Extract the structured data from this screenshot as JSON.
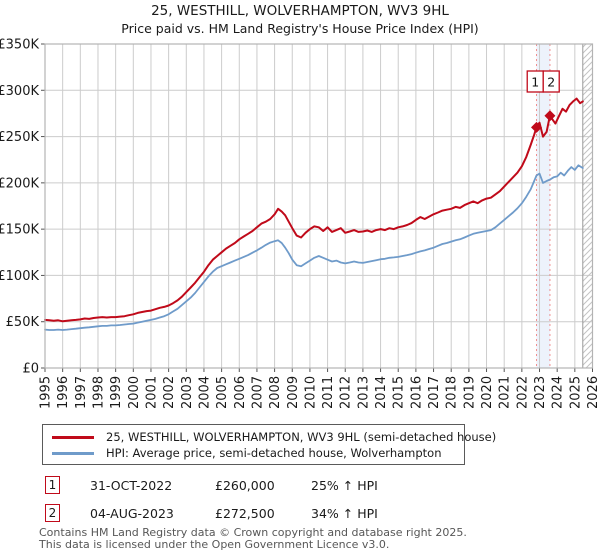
{
  "chart_data": {
    "type": "line",
    "title": "25, WESTHILL, WOLVERHAMPTON, WV3 9HL",
    "subtitle": "Price paid vs. HM Land Registry's House Price Index (HPI)",
    "x_range": [
      1995,
      2026
    ],
    "y_max": 350000,
    "grid": true,
    "legend_position": "bottom",
    "future_hatch_from": 2025.45,
    "x_tick_labels": [
      "1995",
      "1996",
      "1997",
      "1998",
      "1999",
      "2000",
      "2001",
      "2002",
      "2003",
      "2004",
      "2005",
      "2006",
      "2007",
      "2008",
      "2009",
      "2010",
      "2011",
      "2012",
      "2013",
      "2014",
      "2015",
      "2016",
      "2017",
      "2018",
      "2019",
      "2020",
      "2021",
      "2022",
      "2023",
      "2024",
      "2025",
      "2026"
    ],
    "y_ticks": [
      {
        "label": "£0",
        "value": 0
      },
      {
        "label": "£50K",
        "value": 50000
      },
      {
        "label": "£100K",
        "value": 100000
      },
      {
        "label": "£150K",
        "value": 150000
      },
      {
        "label": "£200K",
        "value": 200000
      },
      {
        "label": "£250K",
        "value": 250000
      },
      {
        "label": "£300K",
        "value": 300000
      },
      {
        "label": "£350K",
        "value": 350000
      }
    ],
    "colors": {
      "red": "#c00a1a",
      "blue": "#6f9bca",
      "sale_dash": "#ef8f8f",
      "band": "#edf2fb",
      "grid": "#cccccc",
      "border": "#b3b3b3",
      "hatch": "#c3c3c3",
      "hatch_edge": "#9a9a9a",
      "tick": "#555555",
      "label": "#1a1a1a"
    },
    "series": [
      {
        "name": "25, WESTHILL, WOLVERHAMPTON, WV3 9HL (semi-detached house)",
        "color": "#c00a1a",
        "width": 2,
        "points": [
          [
            1995.0,
            52000
          ],
          [
            1995.25,
            51500
          ],
          [
            1995.5,
            51000
          ],
          [
            1995.75,
            51500
          ],
          [
            1996.0,
            50500
          ],
          [
            1996.25,
            51000
          ],
          [
            1996.5,
            51500
          ],
          [
            1996.75,
            52000
          ],
          [
            1997.0,
            52500
          ],
          [
            1997.25,
            53500
          ],
          [
            1997.5,
            53000
          ],
          [
            1997.75,
            54000
          ],
          [
            1998.0,
            54500
          ],
          [
            1998.25,
            55000
          ],
          [
            1998.5,
            54500
          ],
          [
            1998.75,
            55000
          ],
          [
            1999.0,
            55000
          ],
          [
            1999.25,
            55500
          ],
          [
            1999.5,
            56000
          ],
          [
            1999.75,
            57000
          ],
          [
            2000.0,
            58000
          ],
          [
            2000.25,
            59500
          ],
          [
            2000.5,
            60500
          ],
          [
            2000.75,
            61500
          ],
          [
            2001.0,
            62000
          ],
          [
            2001.25,
            63500
          ],
          [
            2001.5,
            65000
          ],
          [
            2001.75,
            66000
          ],
          [
            2002.0,
            67500
          ],
          [
            2002.25,
            70000
          ],
          [
            2002.5,
            73000
          ],
          [
            2002.75,
            77000
          ],
          [
            2003.0,
            82000
          ],
          [
            2003.25,
            87000
          ],
          [
            2003.5,
            92000
          ],
          [
            2003.75,
            98000
          ],
          [
            2004.0,
            104000
          ],
          [
            2004.25,
            111000
          ],
          [
            2004.5,
            117000
          ],
          [
            2004.75,
            121000
          ],
          [
            2005.0,
            125000
          ],
          [
            2005.25,
            129000
          ],
          [
            2005.5,
            132000
          ],
          [
            2005.75,
            135000
          ],
          [
            2006.0,
            139000
          ],
          [
            2006.25,
            142000
          ],
          [
            2006.5,
            145000
          ],
          [
            2006.75,
            148000
          ],
          [
            2007.0,
            152000
          ],
          [
            2007.25,
            156000
          ],
          [
            2007.5,
            158000
          ],
          [
            2007.75,
            161000
          ],
          [
            2008.0,
            166000
          ],
          [
            2008.2,
            172000
          ],
          [
            2008.4,
            169000
          ],
          [
            2008.6,
            165000
          ],
          [
            2008.8,
            158000
          ],
          [
            2009.0,
            151000
          ],
          [
            2009.25,
            143000
          ],
          [
            2009.5,
            141000
          ],
          [
            2009.75,
            146000
          ],
          [
            2010.0,
            150000
          ],
          [
            2010.25,
            153000
          ],
          [
            2010.5,
            152000
          ],
          [
            2010.75,
            148000
          ],
          [
            2011.0,
            152000
          ],
          [
            2011.25,
            147000
          ],
          [
            2011.5,
            149000
          ],
          [
            2011.75,
            151000
          ],
          [
            2012.0,
            146000
          ],
          [
            2012.25,
            147500
          ],
          [
            2012.5,
            149000
          ],
          [
            2012.75,
            147000
          ],
          [
            2013.0,
            147500
          ],
          [
            2013.25,
            148500
          ],
          [
            2013.5,
            147000
          ],
          [
            2013.75,
            149000
          ],
          [
            2014.0,
            150000
          ],
          [
            2014.25,
            149000
          ],
          [
            2014.5,
            151000
          ],
          [
            2014.75,
            150000
          ],
          [
            2015.0,
            152000
          ],
          [
            2015.25,
            153000
          ],
          [
            2015.5,
            154500
          ],
          [
            2015.75,
            156500
          ],
          [
            2016.0,
            160000
          ],
          [
            2016.25,
            163000
          ],
          [
            2016.5,
            161000
          ],
          [
            2016.75,
            163500
          ],
          [
            2017.0,
            166000
          ],
          [
            2017.25,
            168000
          ],
          [
            2017.5,
            170000
          ],
          [
            2017.75,
            171000
          ],
          [
            2018.0,
            172000
          ],
          [
            2018.25,
            174000
          ],
          [
            2018.5,
            173000
          ],
          [
            2018.75,
            176000
          ],
          [
            2019.0,
            178000
          ],
          [
            2019.25,
            180000
          ],
          [
            2019.5,
            178000
          ],
          [
            2019.75,
            181000
          ],
          [
            2020.0,
            183000
          ],
          [
            2020.25,
            184000
          ],
          [
            2020.5,
            187500
          ],
          [
            2020.75,
            191000
          ],
          [
            2021.0,
            196000
          ],
          [
            2021.25,
            201000
          ],
          [
            2021.5,
            206000
          ],
          [
            2021.75,
            211000
          ],
          [
            2022.0,
            218000
          ],
          [
            2022.25,
            228000
          ],
          [
            2022.5,
            241000
          ],
          [
            2022.7,
            252000
          ],
          [
            2022.83,
            260000
          ],
          [
            2023.0,
            265000
          ],
          [
            2023.2,
            250000
          ],
          [
            2023.4,
            255000
          ],
          [
            2023.59,
            272500
          ],
          [
            2023.75,
            268000
          ],
          [
            2023.9,
            264000
          ],
          [
            2024.1,
            272000
          ],
          [
            2024.3,
            280000
          ],
          [
            2024.5,
            277000
          ],
          [
            2024.7,
            284000
          ],
          [
            2024.9,
            288000
          ],
          [
            2025.1,
            291000
          ],
          [
            2025.3,
            286000
          ],
          [
            2025.45,
            288000
          ]
        ]
      },
      {
        "name": "HPI: Average price, semi-detached house, Wolverhampton",
        "color": "#6f9bca",
        "width": 1.8,
        "points": [
          [
            1995.0,
            41500
          ],
          [
            1995.25,
            41000
          ],
          [
            1995.5,
            41000
          ],
          [
            1995.75,
            41500
          ],
          [
            1996.0,
            41000
          ],
          [
            1996.25,
            41500
          ],
          [
            1996.5,
            42000
          ],
          [
            1996.75,
            42500
          ],
          [
            1997.0,
            43000
          ],
          [
            1997.25,
            43500
          ],
          [
            1997.5,
            44000
          ],
          [
            1997.75,
            44500
          ],
          [
            1998.0,
            45000
          ],
          [
            1998.25,
            45500
          ],
          [
            1998.5,
            45500
          ],
          [
            1998.75,
            46000
          ],
          [
            1999.0,
            46000
          ],
          [
            1999.25,
            46500
          ],
          [
            1999.5,
            47000
          ],
          [
            1999.75,
            47500
          ],
          [
            2000.0,
            48000
          ],
          [
            2000.25,
            49000
          ],
          [
            2000.5,
            50000
          ],
          [
            2000.75,
            51000
          ],
          [
            2001.0,
            52000
          ],
          [
            2001.25,
            53000
          ],
          [
            2001.5,
            54500
          ],
          [
            2001.75,
            56000
          ],
          [
            2002.0,
            58000
          ],
          [
            2002.25,
            61000
          ],
          [
            2002.5,
            64000
          ],
          [
            2002.75,
            68000
          ],
          [
            2003.0,
            72000
          ],
          [
            2003.25,
            76000
          ],
          [
            2003.5,
            81000
          ],
          [
            2003.75,
            87000
          ],
          [
            2004.0,
            93000
          ],
          [
            2004.25,
            99000
          ],
          [
            2004.5,
            104000
          ],
          [
            2004.75,
            108000
          ],
          [
            2005.0,
            110000
          ],
          [
            2005.25,
            112000
          ],
          [
            2005.5,
            114000
          ],
          [
            2005.75,
            116000
          ],
          [
            2006.0,
            118000
          ],
          [
            2006.25,
            120000
          ],
          [
            2006.5,
            122000
          ],
          [
            2006.75,
            124500
          ],
          [
            2007.0,
            127000
          ],
          [
            2007.25,
            130000
          ],
          [
            2007.5,
            133000
          ],
          [
            2007.75,
            135500
          ],
          [
            2008.0,
            137000
          ],
          [
            2008.2,
            138000
          ],
          [
            2008.4,
            135000
          ],
          [
            2008.6,
            130000
          ],
          [
            2008.8,
            124000
          ],
          [
            2009.0,
            117000
          ],
          [
            2009.25,
            111000
          ],
          [
            2009.5,
            110000
          ],
          [
            2009.75,
            113000
          ],
          [
            2010.0,
            116000
          ],
          [
            2010.25,
            119000
          ],
          [
            2010.5,
            121000
          ],
          [
            2010.75,
            119000
          ],
          [
            2011.0,
            117000
          ],
          [
            2011.25,
            115000
          ],
          [
            2011.5,
            116000
          ],
          [
            2011.75,
            114000
          ],
          [
            2012.0,
            113000
          ],
          [
            2012.25,
            114000
          ],
          [
            2012.5,
            115000
          ],
          [
            2012.75,
            114000
          ],
          [
            2013.0,
            113500
          ],
          [
            2013.25,
            114500
          ],
          [
            2013.5,
            115500
          ],
          [
            2013.75,
            116500
          ],
          [
            2014.0,
            117500
          ],
          [
            2014.25,
            118000
          ],
          [
            2014.5,
            119000
          ],
          [
            2014.75,
            119500
          ],
          [
            2015.0,
            120000
          ],
          [
            2015.25,
            121000
          ],
          [
            2015.5,
            122000
          ],
          [
            2015.75,
            123000
          ],
          [
            2016.0,
            124500
          ],
          [
            2016.25,
            126000
          ],
          [
            2016.5,
            127000
          ],
          [
            2016.75,
            128500
          ],
          [
            2017.0,
            130000
          ],
          [
            2017.25,
            132000
          ],
          [
            2017.5,
            134000
          ],
          [
            2017.75,
            135000
          ],
          [
            2018.0,
            136500
          ],
          [
            2018.25,
            138000
          ],
          [
            2018.5,
            139000
          ],
          [
            2018.75,
            141000
          ],
          [
            2019.0,
            143000
          ],
          [
            2019.25,
            145000
          ],
          [
            2019.5,
            146000
          ],
          [
            2019.75,
            147000
          ],
          [
            2020.0,
            148000
          ],
          [
            2020.25,
            149000
          ],
          [
            2020.5,
            152000
          ],
          [
            2020.75,
            156000
          ],
          [
            2021.0,
            160000
          ],
          [
            2021.25,
            164000
          ],
          [
            2021.5,
            168000
          ],
          [
            2021.75,
            172500
          ],
          [
            2022.0,
            178000
          ],
          [
            2022.25,
            185000
          ],
          [
            2022.5,
            193000
          ],
          [
            2022.7,
            202000
          ],
          [
            2022.83,
            208000
          ],
          [
            2023.0,
            210000
          ],
          [
            2023.2,
            200000
          ],
          [
            2023.4,
            202000
          ],
          [
            2023.59,
            203500
          ],
          [
            2023.8,
            206000
          ],
          [
            2024.0,
            207000
          ],
          [
            2024.2,
            211000
          ],
          [
            2024.4,
            208000
          ],
          [
            2024.6,
            213000
          ],
          [
            2024.8,
            217000
          ],
          [
            2025.0,
            214000
          ],
          [
            2025.2,
            219000
          ],
          [
            2025.45,
            216000
          ]
        ]
      }
    ],
    "sales": [
      {
        "label": "1",
        "year": 2022.83,
        "price": 260000
      },
      {
        "label": "2",
        "year": 2023.59,
        "price": 272500
      }
    ]
  },
  "annotations": [
    {
      "num": "1",
      "date": "31-OCT-2022",
      "price": "£260,000",
      "hpi": "25% ↑ HPI"
    },
    {
      "num": "2",
      "date": "04-AUG-2023",
      "price": "£272,500",
      "hpi": "34% ↑ HPI"
    }
  ],
  "footer": {
    "line1": "Contains HM Land Registry data © Crown copyright and database right 2025.",
    "line2": "This data is licensed under the Open Government Licence v3.0."
  }
}
